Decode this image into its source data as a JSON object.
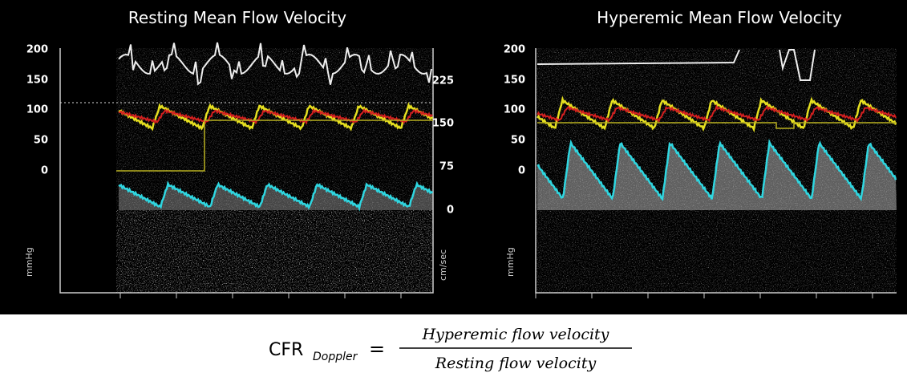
{
  "panels": [
    {
      "title": "Resting Mean Flow Velocity",
      "left_axis_labels": [
        200,
        150,
        100,
        50,
        0
      ],
      "left_axis_unit": "mmHg",
      "right_axis_labels": [
        225,
        150,
        75,
        0
      ],
      "right_axis_unit": "cm/sec"
    },
    {
      "title": "Hyperemic Mean Flow Velocity",
      "left_axis_labels": [
        200,
        150,
        100,
        50,
        0
      ],
      "left_axis_unit": "mmHg"
    }
  ],
  "formula": {
    "lhs": "CFR",
    "subscript": "Doppler",
    "operator": "=",
    "numerator": "Hyperemic flow velocity",
    "denominator": "Resting flow velocity"
  }
}
